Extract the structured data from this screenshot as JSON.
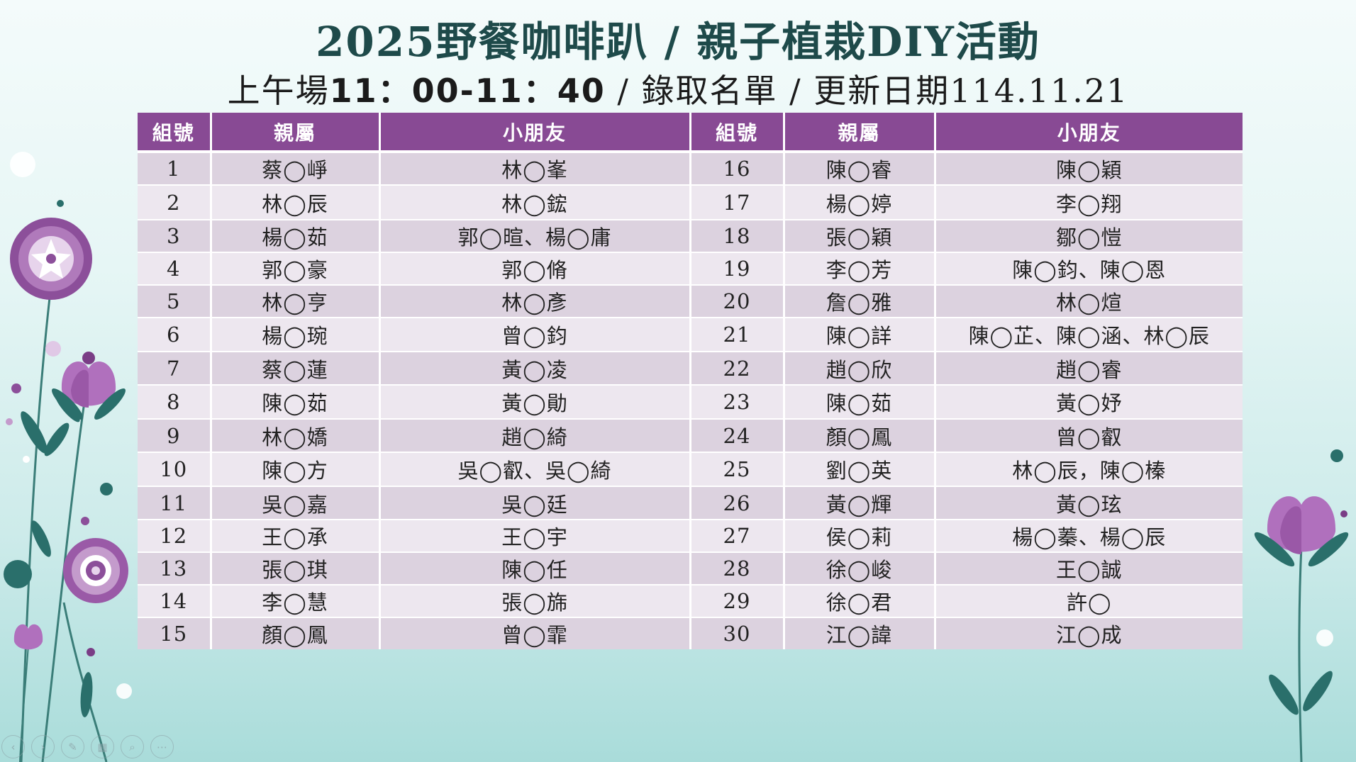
{
  "slide": {
    "title": "2025野餐咖啡趴 / 親子植栽DIY活動",
    "subtitle_prefix": "上午場",
    "subtitle_time": "11：00-11：40",
    "subtitle_suffix": " / 錄取名單 / 更新日期114.11.21"
  },
  "table": {
    "headers": [
      "組號",
      "親屬",
      "小朋友",
      "組號",
      "親屬",
      "小朋友"
    ],
    "rows": [
      [
        "1",
        "蔡◯崢",
        "林◯峯",
        "16",
        "陳◯睿",
        "陳◯穎"
      ],
      [
        "2",
        "林◯辰",
        "林◯鋐",
        "17",
        "楊◯婷",
        "李◯翔"
      ],
      [
        "3",
        "楊◯茹",
        "郭◯暄、楊◯庸",
        "18",
        "張◯穎",
        "鄒◯愷"
      ],
      [
        "4",
        "郭◯豪",
        "郭◯脩",
        "19",
        "李◯芳",
        "陳◯鈞、陳◯恩"
      ],
      [
        "5",
        "林◯亨",
        "林◯彥",
        "20",
        "詹◯雅",
        "林◯煊"
      ],
      [
        "6",
        "楊◯琬",
        "曾◯鈞",
        "21",
        "陳◯詳",
        "陳◯芷、陳◯涵、林◯辰"
      ],
      [
        "7",
        "蔡◯蓮",
        "黃◯凌",
        "22",
        "趙◯欣",
        "趙◯睿"
      ],
      [
        "8",
        "陳◯茹",
        "黃◯勛",
        "23",
        "陳◯茹",
        "黃◯妤"
      ],
      [
        "9",
        "林◯嬌",
        "趙◯綺",
        "24",
        "顏◯鳳",
        "曾◯叡"
      ],
      [
        "10",
        "陳◯方",
        "吳◯叡、吳◯綺",
        "25",
        "劉◯英",
        "林◯辰，陳◯榛"
      ],
      [
        "11",
        "吳◯嘉",
        "吳◯廷",
        "26",
        "黃◯輝",
        "黃◯玹"
      ],
      [
        "12",
        "王◯承",
        "王◯宇",
        "27",
        "侯◯莉",
        "楊◯蓁、楊◯辰"
      ],
      [
        "13",
        "張◯琪",
        "陳◯任",
        "28",
        "徐◯峻",
        "王◯誠"
      ],
      [
        "14",
        "李◯慧",
        "張◯旆",
        "29",
        "徐◯君",
        "許◯"
      ],
      [
        "15",
        "顏◯鳳",
        "曾◯霏",
        "30",
        "江◯諱",
        "江◯成"
      ]
    ]
  },
  "slideshow_controls": [
    {
      "name": "previous-slide-icon",
      "glyph": "‹"
    },
    {
      "name": "next-slide-icon",
      "glyph": "›"
    },
    {
      "name": "pen-icon",
      "glyph": "✎"
    },
    {
      "name": "slides-grid-icon",
      "glyph": "▦"
    },
    {
      "name": "zoom-icon",
      "glyph": "⌕"
    },
    {
      "name": "more-options-icon",
      "glyph": "⋯"
    }
  ],
  "colors": {
    "header_bg": "#884a94",
    "row_odd": "#dcd2df",
    "row_even": "#ede7ef",
    "flower_purple": "#9b59a8",
    "leaf_teal": "#2a6f6b"
  }
}
